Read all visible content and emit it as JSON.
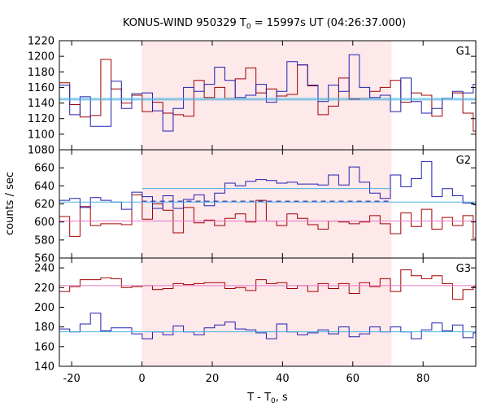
{
  "chart_data": {
    "type": "line",
    "title_prefix": "KONUS-WIND 950329 T",
    "title_sub": "0",
    "title_suffix": " = 15997s UT (04:26:37.000)",
    "xlabel_prefix": "T - T",
    "xlabel_sub": "0",
    "xlabel_suffix": ", s",
    "ylabel": "counts / sec",
    "xlim": [
      -23.5,
      95
    ],
    "xticks": [
      -20,
      0,
      20,
      40,
      60,
      80
    ],
    "highlight_interval": [
      0,
      71
    ],
    "colors": {
      "highlight": "#fde8ea",
      "series_red": "#a30000",
      "series_blue": "#2020b0",
      "level_light_blue": "#4ab0e0",
      "level_pink": "#e878c8",
      "level_dark_blue_dashed": "#1a1aa0"
    },
    "panels": [
      {
        "label": "G1",
        "ylim": [
          1080,
          1220
        ],
        "yticks": [
          1080,
          1100,
          1120,
          1140,
          1160,
          1180,
          1200,
          1220
        ],
        "bin_start": -23.5,
        "bin_width": 2.944,
        "series": [
          {
            "color_key": "series_red",
            "values": [
              1166,
              1138,
              1122,
              1124,
              1196,
              1158,
              1140,
              1150,
              1129,
              1141,
              1127,
              1125,
              1123,
              1169,
              1147,
              1160,
              1146,
              1171,
              1185,
              1153,
              1158,
              1149,
              1151,
              1189,
              1162,
              1125,
              1136,
              1172,
              1145,
              1146,
              1155,
              1160,
              1169,
              1141,
              1153,
              1150,
              1123,
              1146,
              1153,
              1127,
              1104,
              1140,
              1132,
              1159,
              1139
            ]
          },
          {
            "color_key": "series_blue",
            "values": [
              1163,
              1125,
              1148,
              1110,
              1110,
              1168,
              1133,
              1152,
              1153,
              1130,
              1104,
              1133,
              1160,
              1155,
              1164,
              1186,
              1169,
              1147,
              1150,
              1164,
              1141,
              1155,
              1193,
              1189,
              1163,
              1142,
              1163,
              1155,
              1202,
              1160,
              1147,
              1150,
              1129,
              1172,
              1142,
              1127,
              1133,
              1146,
              1155,
              1153,
              1164,
              1110,
              1104,
              1110,
              1165
            ]
          }
        ],
        "levels": [
          {
            "color_key": "level_light_blue",
            "value": 1144,
            "x_from": -23.5,
            "x_to": 95,
            "dashed": false
          },
          {
            "color_key": "level_light_blue",
            "value": 1146,
            "x_from": -23.5,
            "x_to": 95,
            "dashed": false
          }
        ]
      },
      {
        "label": "G2",
        "ylim": [
          560,
          680
        ],
        "yticks": [
          560,
          580,
          600,
          620,
          640,
          660
        ],
        "bin_start": -23.5,
        "bin_width": 2.944,
        "series": [
          {
            "color_key": "series_red",
            "values": [
              606,
              584,
              617,
              596,
              598,
              598,
              597,
              630,
              603,
              620,
              613,
              588,
              616,
              599,
              602,
              596,
              604,
              609,
              600,
              624,
              601,
              596,
              609,
              604,
              597,
              592,
              601,
              600,
              598,
              600,
              607,
              598,
              587,
              610,
              595,
              614,
              592,
              605,
              596,
              607,
              582,
              601,
              606,
              605,
              594
            ]
          },
          {
            "color_key": "series_blue",
            "values": [
              624,
              626,
              616,
              627,
              624,
              622,
              614,
              633,
              628,
              615,
              629,
              615,
              625,
              630,
              618,
              632,
              643,
              640,
              645,
              647,
              646,
              643,
              644,
              642,
              642,
              641,
              652,
              641,
              661,
              644,
              632,
              626,
              652,
              639,
              648,
              667,
              628,
              637,
              629,
              621,
              619,
              622,
              617,
              645,
              642
            ]
          }
        ],
        "levels": [
          {
            "color_key": "level_light_blue",
            "value": 622,
            "x_from": -23.5,
            "x_to": 95,
            "dashed": false
          },
          {
            "color_key": "level_light_blue",
            "value": 637,
            "x_from": 0,
            "x_to": 71,
            "dashed": false
          },
          {
            "color_key": "level_dark_blue_dashed",
            "value": 623,
            "x_from": 0,
            "x_to": 71,
            "dashed": true
          },
          {
            "color_key": "level_pink",
            "value": 601,
            "x_from": -23.5,
            "x_to": 95,
            "dashed": false
          }
        ]
      },
      {
        "label": "G3",
        "ylim": [
          140,
          250
        ],
        "yticks": [
          140,
          160,
          180,
          200,
          220,
          240
        ],
        "bin_start": -23.5,
        "bin_width": 2.944,
        "series": [
          {
            "color_key": "series_red",
            "values": [
              216,
              221,
              228,
              228,
              230,
              229,
              220,
              221,
              222,
              218,
              219,
              224,
              223,
              224,
              225,
              225,
              219,
              220,
              217,
              228,
              224,
              225,
              219,
              222,
              216,
              224,
              219,
              224,
              214,
              225,
              221,
              229,
              216,
              238,
              232,
              229,
              232,
              224,
              208,
              218,
              221,
              225,
              231,
              228,
              228
            ]
          },
          {
            "color_key": "series_blue",
            "values": [
              178,
              175,
              183,
              194,
              176,
              179,
              179,
              173,
              168,
              175,
              172,
              181,
              175,
              172,
              179,
              182,
              185,
              178,
              177,
              174,
              168,
              183,
              175,
              172,
              174,
              177,
              173,
              180,
              170,
              173,
              180,
              175,
              180,
              175,
              168,
              177,
              184,
              176,
              182,
              169,
              174,
              178,
              176,
              169,
              182
            ]
          }
        ],
        "levels": [
          {
            "color_key": "level_pink",
            "value": 222,
            "x_from": -23.5,
            "x_to": 95,
            "dashed": false
          },
          {
            "color_key": "level_light_blue",
            "value": 175,
            "x_from": -23.5,
            "x_to": 95,
            "dashed": false
          }
        ]
      }
    ]
  }
}
